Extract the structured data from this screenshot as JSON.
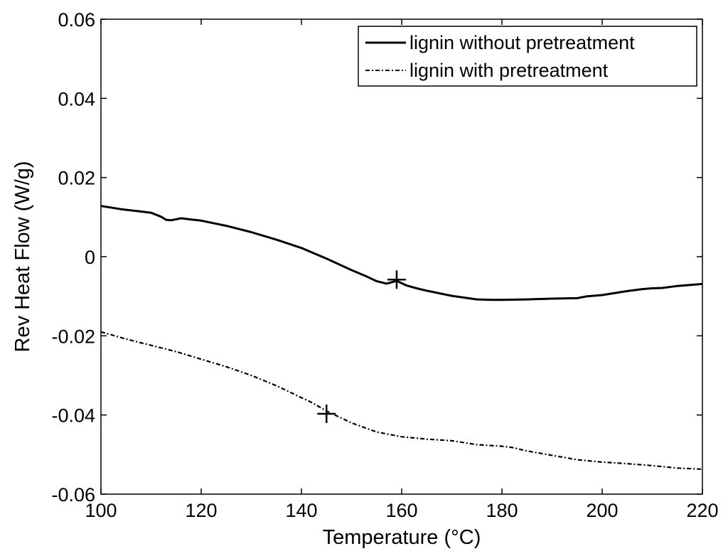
{
  "chart_data": {
    "type": "line",
    "title": "",
    "xlabel": "Temperature (°C)",
    "ylabel": "Rev Heat Flow (W/g)",
    "xlim": [
      100,
      220
    ],
    "ylim": [
      -0.06,
      0.06
    ],
    "xticks": [
      100,
      120,
      140,
      160,
      180,
      200,
      220
    ],
    "yticks": [
      0.06,
      0.04,
      0.02,
      0,
      -0.02,
      -0.04,
      -0.06
    ],
    "xtick_labels": [
      "100",
      "120",
      "140",
      "160",
      "180",
      "200",
      "220"
    ],
    "ytick_labels": [
      "0.06",
      "0.04",
      "0.02",
      "0",
      "-0.02",
      "-0.04",
      "-0.06"
    ],
    "grid": false,
    "legend_position": "top-right",
    "series": [
      {
        "name": "lignin without pretreatment",
        "style": "solid",
        "color": "#000000",
        "x": [
          100,
          104,
          108,
          110,
          112,
          113,
          114,
          116,
          118,
          120,
          125,
          130,
          135,
          140,
          145,
          150,
          153,
          155,
          157,
          159,
          161,
          163,
          165,
          170,
          175,
          178,
          180,
          185,
          190,
          195,
          197,
          200,
          205,
          208,
          210,
          212,
          215,
          220
        ],
        "y": [
          0.0128,
          0.012,
          0.0114,
          0.0111,
          0.0101,
          0.0093,
          0.0092,
          0.0097,
          0.0094,
          0.0091,
          0.0078,
          0.0062,
          0.0043,
          0.0022,
          -0.0005,
          -0.0034,
          -0.005,
          -0.0062,
          -0.0068,
          -0.0061,
          -0.0073,
          -0.008,
          -0.0086,
          -0.0099,
          -0.0108,
          -0.0109,
          -0.0109,
          -0.0108,
          -0.0106,
          -0.0105,
          -0.01,
          -0.0097,
          -0.0087,
          -0.0082,
          -0.008,
          -0.0079,
          -0.0074,
          -0.0069
        ]
      },
      {
        "name": "lignin with pretreatment",
        "style": "dashdot",
        "color": "#000000",
        "x": [
          100,
          105,
          110,
          115,
          120,
          125,
          130,
          135,
          140,
          142,
          145,
          148,
          150,
          155,
          160,
          165,
          170,
          175,
          180,
          182,
          185,
          190,
          195,
          200,
          205,
          210,
          215,
          220
        ],
        "y": [
          -0.019,
          -0.0208,
          -0.0224,
          -0.024,
          -0.0259,
          -0.0278,
          -0.03,
          -0.0326,
          -0.0356,
          -0.0368,
          -0.039,
          -0.0408,
          -0.042,
          -0.0443,
          -0.0455,
          -0.0461,
          -0.0465,
          -0.0475,
          -0.0479,
          -0.0482,
          -0.0491,
          -0.0502,
          -0.0513,
          -0.0519,
          -0.0523,
          -0.0528,
          -0.0534,
          -0.0537
        ]
      }
    ],
    "markers": [
      {
        "x": 159,
        "y": -0.0058,
        "symbol": "+"
      },
      {
        "x": 145,
        "y": -0.0397,
        "symbol": "+"
      }
    ]
  }
}
